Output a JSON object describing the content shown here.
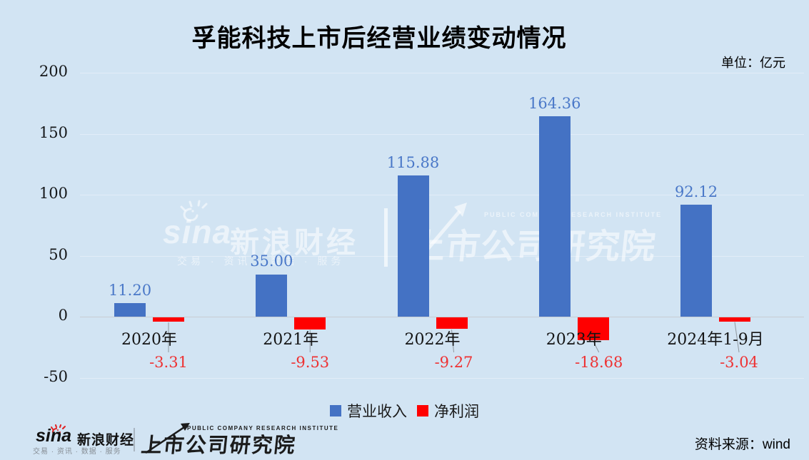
{
  "chart_data": {
    "type": "bar",
    "title": "孚能科技上市后经营业绩变动情况",
    "unit": "单位：亿元",
    "categories": [
      "2020年",
      "2021年",
      "2022年",
      "2023年",
      "2024年1-9月"
    ],
    "series": [
      {
        "name": "营业收入",
        "color": "#4472c4",
        "values": [
          11.2,
          35.0,
          115.88,
          164.36,
          92.12
        ]
      },
      {
        "name": "净利润",
        "color": "#ff0000",
        "values": [
          -3.31,
          -9.53,
          -9.27,
          -18.68,
          -3.04
        ]
      }
    ],
    "y_ticks": [
      200,
      150,
      100,
      50,
      0,
      -50
    ],
    "ylim": [
      -50,
      200
    ],
    "grid": true,
    "legend_position": "bottom",
    "value_label_decimals": 2
  },
  "watermark": {
    "sina_text": "sina",
    "brand": "新浪财经",
    "tagline": "交易 · 资讯 · 数据 · 服务",
    "institute": "上市公司研究院",
    "institute_en": "PUBLIC COMPANY RESEARCH INSTITUTE"
  },
  "footer": {
    "sina_text": "sina",
    "brand": "新浪财经",
    "tagline": "交易 · 资讯 · 数据 · 服务",
    "institute": "上市公司研究院",
    "institute_en": "PUBLIC COMPANY RESEARCH INSTITUTE",
    "source": "资料来源：wind"
  },
  "colors": {
    "background": "#d2e4f3",
    "bar_revenue": "#4472c4",
    "bar_profit": "#ff0000",
    "value_label_revenue": "#4a78c8",
    "value_label_profit": "#ee3233"
  }
}
